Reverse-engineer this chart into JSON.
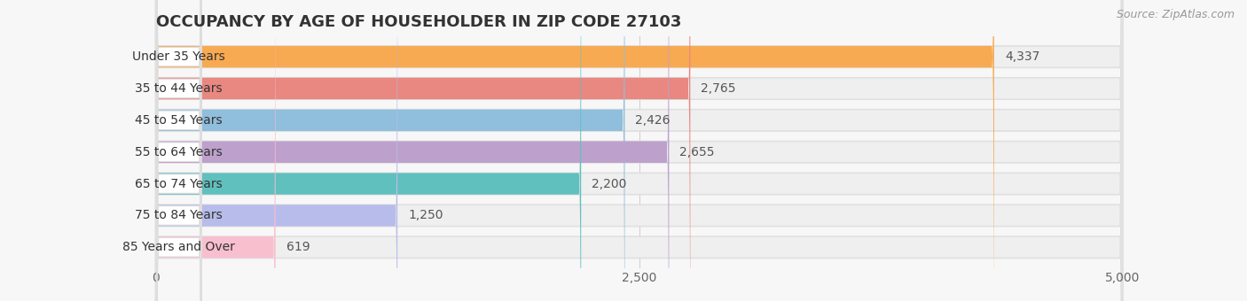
{
  "title": "OCCUPANCY BY AGE OF HOUSEHOLDER IN ZIP CODE 27103",
  "source": "Source: ZipAtlas.com",
  "categories": [
    "Under 35 Years",
    "35 to 44 Years",
    "45 to 54 Years",
    "55 to 64 Years",
    "65 to 74 Years",
    "75 to 84 Years",
    "85 Years and Over"
  ],
  "values": [
    4337,
    2765,
    2426,
    2655,
    2200,
    1250,
    619
  ],
  "bar_colors": [
    "#f7aa52",
    "#e88880",
    "#90bedd",
    "#bda0cc",
    "#60c0be",
    "#b8bcea",
    "#f8bfcf"
  ],
  "xlim": [
    0,
    5000
  ],
  "xticks": [
    0,
    2500,
    5000
  ],
  "xtick_labels": [
    "0",
    "2,500",
    "5,000"
  ],
  "background_color": "#f7f7f7",
  "title_fontsize": 13,
  "label_fontsize": 10,
  "value_fontsize": 10,
  "source_fontsize": 9
}
